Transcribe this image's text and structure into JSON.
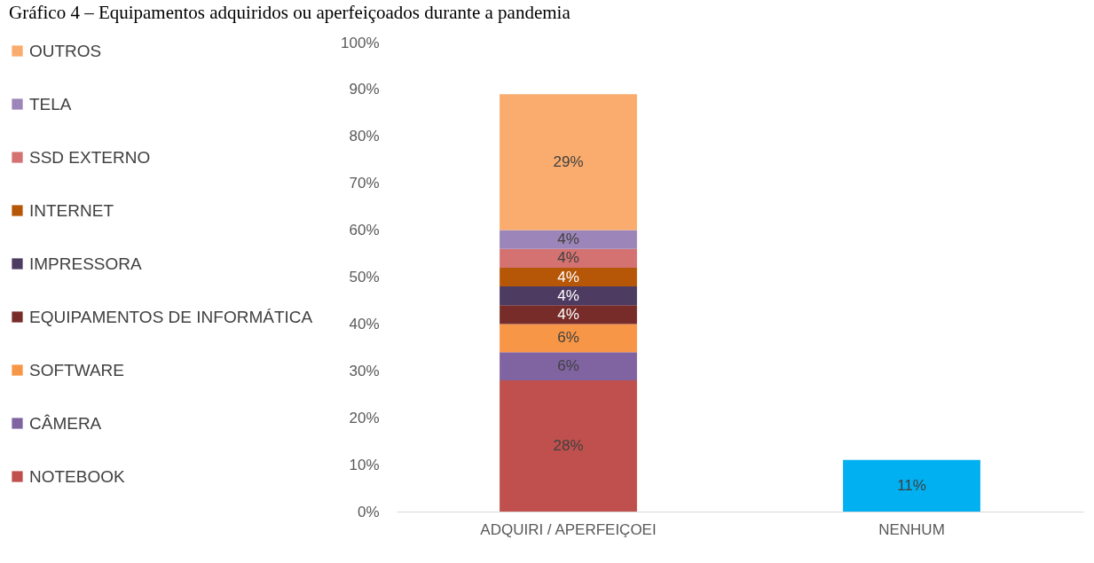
{
  "chart_data": {
    "type": "bar",
    "title": "Gráfico 4 – Equipamentos adquiridos ou aperfeiçoados durante a pandemia",
    "categories": [
      "ADQUIRI / APERFEIÇOEI",
      "NENHUM"
    ],
    "stacked": true,
    "legend": "left",
    "grid": false,
    "ylim": [
      0,
      100
    ],
    "yticks": [
      {
        "value": 0,
        "label": "0%"
      },
      {
        "value": 10,
        "label": "10%"
      },
      {
        "value": 20,
        "label": "20%"
      },
      {
        "value": 30,
        "label": "30%"
      },
      {
        "value": 40,
        "label": "40%"
      },
      {
        "value": 50,
        "label": "50%"
      },
      {
        "value": 60,
        "label": "60%"
      },
      {
        "value": 70,
        "label": "70%"
      },
      {
        "value": 80,
        "label": "80%"
      },
      {
        "value": 90,
        "label": "90%"
      },
      {
        "value": 100,
        "label": "100%"
      }
    ],
    "series": [
      {
        "name": "NOTEBOOK",
        "color": "#c0504d",
        "values": [
          28,
          null
        ],
        "value_labels": [
          "28%",
          null
        ]
      },
      {
        "name": "CÂMERA",
        "color": "#8064a2",
        "values": [
          6,
          null
        ],
        "value_labels": [
          "6%",
          null
        ]
      },
      {
        "name": "SOFTWARE",
        "color": "#f79646",
        "values": [
          6,
          null
        ],
        "value_labels": [
          "6%",
          null
        ]
      },
      {
        "name": "EQUIPAMENTOS DE INFORMÁTICA",
        "color": "#772c2a",
        "values": [
          4,
          null
        ],
        "value_labels": [
          "4%",
          null
        ]
      },
      {
        "name": "IMPRESSORA",
        "color": "#4d3b62",
        "values": [
          4,
          null
        ],
        "value_labels": [
          "4%",
          null
        ]
      },
      {
        "name": "INTERNET",
        "color": "#b65708",
        "values": [
          4,
          null
        ],
        "value_labels": [
          "4%",
          null
        ]
      },
      {
        "name": "SSD EXTERNO",
        "color": "#d37270",
        "values": [
          4,
          null
        ],
        "value_labels": [
          "4%",
          null
        ]
      },
      {
        "name": "TELA",
        "color": "#9c85b8",
        "values": [
          4,
          null
        ],
        "value_labels": [
          "4%",
          null
        ]
      },
      {
        "name": "OUTROS",
        "color": "#f9ac6d",
        "values": [
          29,
          null
        ],
        "value_labels": [
          "29%",
          null
        ]
      },
      {
        "color": "#00b0f0",
        "values": [
          null,
          11
        ],
        "value_labels": [
          null,
          "11%"
        ]
      }
    ]
  }
}
